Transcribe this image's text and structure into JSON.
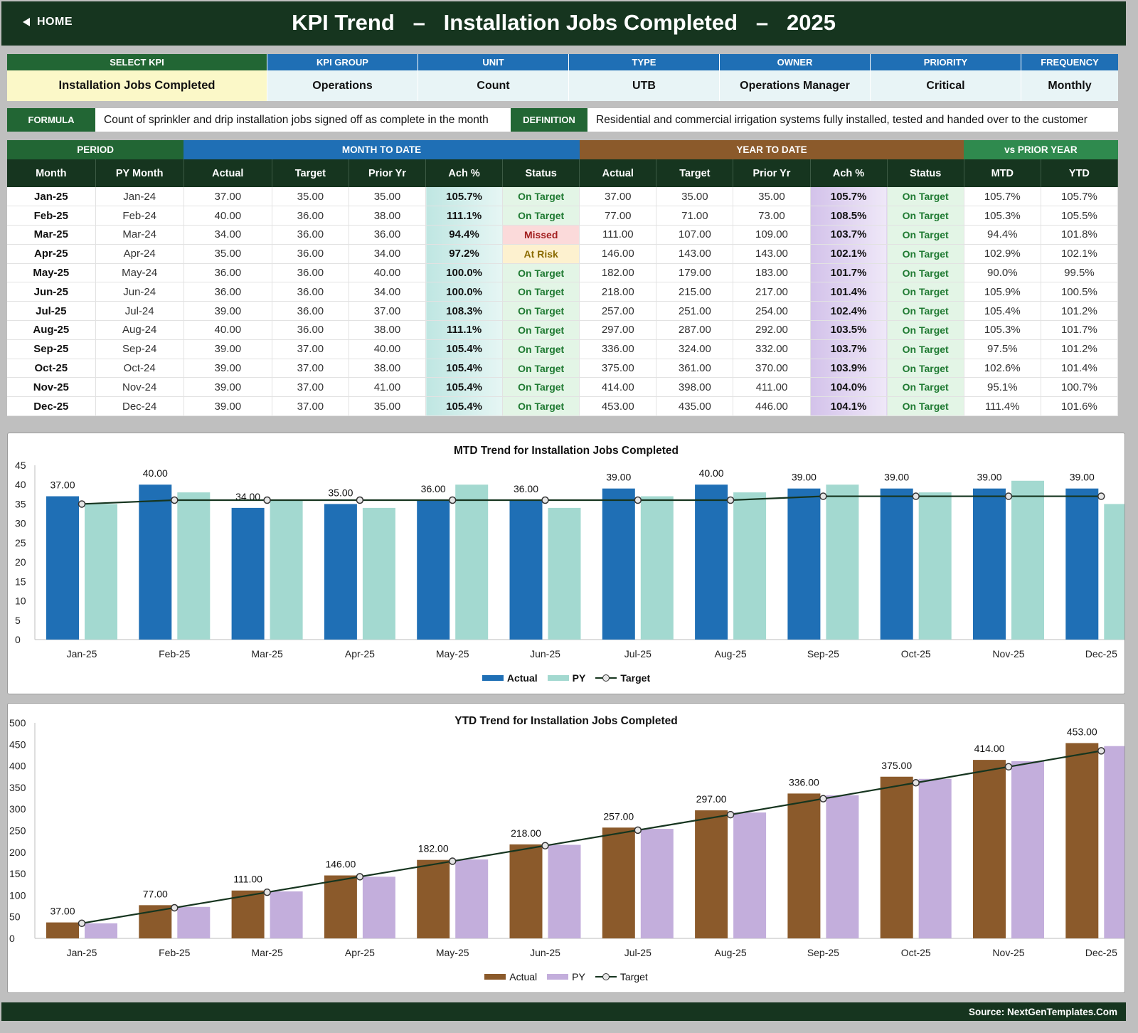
{
  "header": {
    "home_label": "HOME",
    "title": "KPI Trend   –   Installation Jobs Completed   –   2025"
  },
  "kpi_info": {
    "columns": [
      {
        "label": "SELECT KPI",
        "value": "Installation Jobs Completed"
      },
      {
        "label": "KPI GROUP",
        "value": "Operations"
      },
      {
        "label": "UNIT",
        "value": "Count"
      },
      {
        "label": "TYPE",
        "value": "UTB"
      },
      {
        "label": "OWNER",
        "value": "Operations Manager"
      },
      {
        "label": "PRIORITY",
        "value": "Critical"
      },
      {
        "label": "FREQUENCY",
        "value": "Monthly"
      }
    ]
  },
  "formula": {
    "label": "FORMULA",
    "text": "Count of sprinkler and drip installation jobs signed off as complete in the month"
  },
  "definition": {
    "label": "DEFINITION",
    "text": "Residential and commercial irrigation systems fully installed, tested and handed over to the customer"
  },
  "table": {
    "groups": {
      "period": "PERIOD",
      "mtd": "MONTH TO DATE",
      "ytd": "YEAR TO DATE",
      "vs_py": "vs PRIOR YEAR"
    },
    "headers": [
      "Month",
      "PY Month",
      "Actual",
      "Target",
      "Prior Yr",
      "Ach %",
      "Status",
      "Actual",
      "Target",
      "Prior Yr",
      "Ach %",
      "Status",
      "MTD",
      "YTD"
    ],
    "rows": [
      [
        "Jan-25",
        "Jan-24",
        "37.00",
        "35.00",
        "35.00",
        "105.7%",
        "On Target",
        "37.00",
        "35.00",
        "35.00",
        "105.7%",
        "On Target",
        "105.7%",
        "105.7%"
      ],
      [
        "Feb-25",
        "Feb-24",
        "40.00",
        "36.00",
        "38.00",
        "111.1%",
        "On Target",
        "77.00",
        "71.00",
        "73.00",
        "108.5%",
        "On Target",
        "105.3%",
        "105.5%"
      ],
      [
        "Mar-25",
        "Mar-24",
        "34.00",
        "36.00",
        "36.00",
        "94.4%",
        "Missed",
        "111.00",
        "107.00",
        "109.00",
        "103.7%",
        "On Target",
        "94.4%",
        "101.8%"
      ],
      [
        "Apr-25",
        "Apr-24",
        "35.00",
        "36.00",
        "34.00",
        "97.2%",
        "At Risk",
        "146.00",
        "143.00",
        "143.00",
        "102.1%",
        "On Target",
        "102.9%",
        "102.1%"
      ],
      [
        "May-25",
        "May-24",
        "36.00",
        "36.00",
        "40.00",
        "100.0%",
        "On Target",
        "182.00",
        "179.00",
        "183.00",
        "101.7%",
        "On Target",
        "90.0%",
        "99.5%"
      ],
      [
        "Jun-25",
        "Jun-24",
        "36.00",
        "36.00",
        "34.00",
        "100.0%",
        "On Target",
        "218.00",
        "215.00",
        "217.00",
        "101.4%",
        "On Target",
        "105.9%",
        "100.5%"
      ],
      [
        "Jul-25",
        "Jul-24",
        "39.00",
        "36.00",
        "37.00",
        "108.3%",
        "On Target",
        "257.00",
        "251.00",
        "254.00",
        "102.4%",
        "On Target",
        "105.4%",
        "101.2%"
      ],
      [
        "Aug-25",
        "Aug-24",
        "40.00",
        "36.00",
        "38.00",
        "111.1%",
        "On Target",
        "297.00",
        "287.00",
        "292.00",
        "103.5%",
        "On Target",
        "105.3%",
        "101.7%"
      ],
      [
        "Sep-25",
        "Sep-24",
        "39.00",
        "37.00",
        "40.00",
        "105.4%",
        "On Target",
        "336.00",
        "324.00",
        "332.00",
        "103.7%",
        "On Target",
        "97.5%",
        "101.2%"
      ],
      [
        "Oct-25",
        "Oct-24",
        "39.00",
        "37.00",
        "38.00",
        "105.4%",
        "On Target",
        "375.00",
        "361.00",
        "370.00",
        "103.9%",
        "On Target",
        "102.6%",
        "101.4%"
      ],
      [
        "Nov-25",
        "Nov-24",
        "39.00",
        "37.00",
        "41.00",
        "105.4%",
        "On Target",
        "414.00",
        "398.00",
        "411.00",
        "104.0%",
        "On Target",
        "95.1%",
        "100.7%"
      ],
      [
        "Dec-25",
        "Dec-24",
        "39.00",
        "37.00",
        "35.00",
        "105.4%",
        "On Target",
        "453.00",
        "435.00",
        "446.00",
        "104.1%",
        "On Target",
        "111.4%",
        "101.6%"
      ]
    ]
  },
  "colors": {
    "header_dark": "#16351f",
    "kpi_green": "#226634",
    "mtd_blue": "#1f6fb5",
    "ytd_brown": "#8b5a2b",
    "vs_green": "#2f8a4e",
    "py_mtd": "#a3d9d0",
    "py_ytd": "#c3aedc",
    "target_line": "#16351f"
  },
  "chart_data": [
    {
      "type": "bar",
      "title": "MTD Trend for Installation Jobs Completed",
      "categories": [
        "Jan-25",
        "Feb-25",
        "Mar-25",
        "Apr-25",
        "May-25",
        "Jun-25",
        "Jul-25",
        "Aug-25",
        "Sep-25",
        "Oct-25",
        "Nov-25",
        "Dec-25"
      ],
      "series": [
        {
          "name": "Actual",
          "kind": "bar",
          "color": "#1f6fb5",
          "values": [
            37,
            40,
            34,
            35,
            36,
            36,
            39,
            40,
            39,
            39,
            39,
            39
          ]
        },
        {
          "name": "PY",
          "kind": "bar",
          "color": "#a3d9d0",
          "values": [
            35,
            38,
            36,
            34,
            40,
            34,
            37,
            38,
            40,
            38,
            41,
            35
          ]
        },
        {
          "name": "Target",
          "kind": "line",
          "color": "#16351f",
          "values": [
            35,
            36,
            36,
            36,
            36,
            36,
            36,
            36,
            37,
            37,
            37,
            37
          ]
        }
      ],
      "data_labels": [
        "37.00",
        "40.00",
        "34.00",
        "35.00",
        "36.00",
        "36.00",
        "39.00",
        "40.00",
        "39.00",
        "39.00",
        "39.00",
        "39.00"
      ],
      "yticks": [
        0,
        5,
        10,
        15,
        20,
        25,
        30,
        35,
        40,
        45
      ],
      "ylim": [
        0,
        45
      ],
      "legend": "bottom"
    },
    {
      "type": "bar",
      "title": "YTD Trend for Installation Jobs Completed",
      "categories": [
        "Jan-25",
        "Feb-25",
        "Mar-25",
        "Apr-25",
        "May-25",
        "Jun-25",
        "Jul-25",
        "Aug-25",
        "Sep-25",
        "Oct-25",
        "Nov-25",
        "Dec-25"
      ],
      "series": [
        {
          "name": "Actual",
          "kind": "bar",
          "color": "#8b5a2b",
          "values": [
            37,
            77,
            111,
            146,
            182,
            218,
            257,
            297,
            336,
            375,
            414,
            453
          ]
        },
        {
          "name": "PY",
          "kind": "bar",
          "color": "#c3aedc",
          "values": [
            35,
            73,
            109,
            143,
            183,
            217,
            254,
            292,
            332,
            370,
            411,
            446
          ]
        },
        {
          "name": "Target",
          "kind": "line",
          "color": "#16351f",
          "values": [
            35,
            71,
            107,
            143,
            179,
            215,
            251,
            287,
            324,
            361,
            398,
            435
          ]
        }
      ],
      "data_labels": [
        "37.00",
        "77.00",
        "111.00",
        "146.00",
        "182.00",
        "218.00",
        "257.00",
        "297.00",
        "336.00",
        "375.00",
        "414.00",
        "453.00"
      ],
      "yticks": [
        0,
        50,
        100,
        150,
        200,
        250,
        300,
        350,
        400,
        450,
        500
      ],
      "ylim": [
        0,
        500
      ],
      "legend": "bottom"
    }
  ],
  "footer": {
    "source": "Source: NextGenTemplates.Com"
  }
}
